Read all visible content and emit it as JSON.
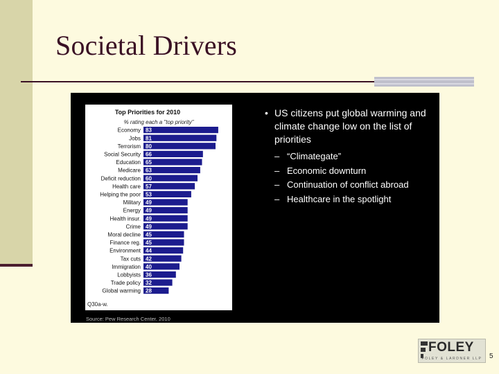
{
  "slide": {
    "title": "Societal Drivers",
    "page_number": "5"
  },
  "colors": {
    "background": "#fdfadf",
    "sidebar_band": "#d8d5a9",
    "title_text": "#3a1024",
    "bar": "#1c1c8e"
  },
  "bullets": {
    "main": "US citizens put global warming and climate change low on the list of priorities",
    "sub": [
      "“Climategate”",
      "Economic downturn",
      "Continuation of conflict abroad",
      "Healthcare in the spotlight"
    ]
  },
  "figure": {
    "source": "Source: Pew Research Center, 2010",
    "note": "Q30a-w."
  },
  "logo": {
    "word": "FOLEY",
    "subtext": "FOLEY & LARDNER LLP",
    "icon": "foley-logo-mark"
  },
  "chart_data": {
    "type": "bar",
    "orientation": "horizontal",
    "title": "Top Priorities for 2010",
    "subtitle": "% rating each a \"top priority\"",
    "categories": [
      "Economy",
      "Jobs",
      "Terrorism",
      "Social Security",
      "Education",
      "Medicare",
      "Deficit reduction",
      "Health care",
      "Helping the poor",
      "Military",
      "Energy",
      "Health insur.",
      "Crime",
      "Moral decline",
      "Finance reg.",
      "Environment",
      "Tax cuts",
      "Immigration",
      "Lobbyists",
      "Trade policy",
      "Global warming"
    ],
    "values": [
      83,
      81,
      80,
      66,
      65,
      63,
      60,
      57,
      53,
      49,
      49,
      49,
      49,
      45,
      45,
      44,
      42,
      40,
      36,
      32,
      28
    ],
    "data_labels": true,
    "grid": false,
    "legend": "none"
  }
}
